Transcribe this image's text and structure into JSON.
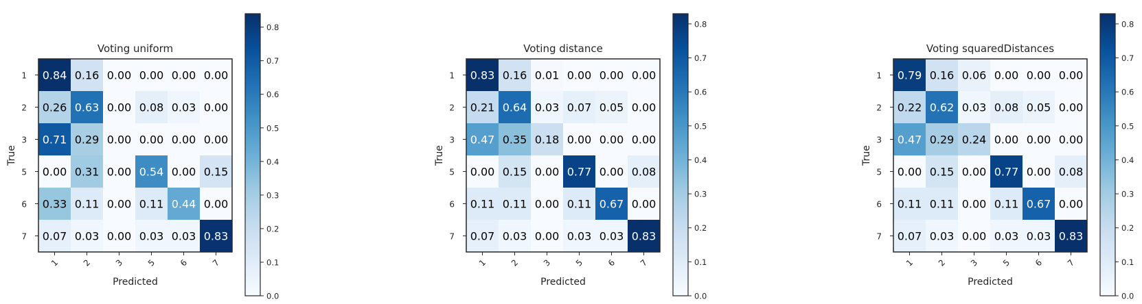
{
  "chart_data": [
    {
      "type": "heatmap",
      "title": "Voting uniform",
      "xlabel": "Predicted",
      "ylabel": "True",
      "x_categories": [
        "1",
        "2",
        "3",
        "5",
        "6",
        "7"
      ],
      "y_categories": [
        "1",
        "2",
        "3",
        "5",
        "6",
        "7"
      ],
      "values": [
        [
          0.84,
          0.16,
          0.0,
          0.0,
          0.0,
          0.0
        ],
        [
          0.26,
          0.63,
          0.0,
          0.08,
          0.03,
          0.0
        ],
        [
          0.71,
          0.29,
          0.0,
          0.0,
          0.0,
          0.0
        ],
        [
          0.0,
          0.31,
          0.0,
          0.54,
          0.0,
          0.15
        ],
        [
          0.33,
          0.11,
          0.0,
          0.11,
          0.44,
          0.0
        ],
        [
          0.07,
          0.03,
          0.0,
          0.03,
          0.03,
          0.83
        ]
      ],
      "value_labels": [
        [
          "0.84",
          "0.16",
          "0.00",
          "0.00",
          "0.00",
          "0.00"
        ],
        [
          "0.26",
          "0.63",
          "0.00",
          "0.08",
          "0.03",
          "0.00"
        ],
        [
          "0.71",
          "0.29",
          "0.00",
          "0.00",
          "0.00",
          "0.00"
        ],
        [
          "0.00",
          "0.31",
          "0.00",
          "0.54",
          "0.00",
          "0.15"
        ],
        [
          "0.33",
          "0.11",
          "0.00",
          "0.11",
          "0.44",
          "0.00"
        ],
        [
          "0.07",
          "0.03",
          "0.00",
          "0.03",
          "0.03",
          "0.83"
        ]
      ],
      "colorbar": {
        "range": [
          0.0,
          0.84
        ],
        "ticks": [
          0.0,
          0.1,
          0.2,
          0.3,
          0.4,
          0.5,
          0.6,
          0.7,
          0.8
        ],
        "tick_labels": [
          "0.0",
          "0.1",
          "0.2",
          "0.3",
          "0.4",
          "0.5",
          "0.6",
          "0.7",
          "0.8"
        ]
      }
    },
    {
      "type": "heatmap",
      "title": "Voting distance",
      "xlabel": "Predicted",
      "ylabel": "True",
      "x_categories": [
        "1",
        "2",
        "3",
        "5",
        "6",
        "7"
      ],
      "y_categories": [
        "1",
        "2",
        "3",
        "5",
        "6",
        "7"
      ],
      "values": [
        [
          0.83,
          0.16,
          0.01,
          0.0,
          0.0,
          0.0
        ],
        [
          0.21,
          0.64,
          0.03,
          0.07,
          0.05,
          0.0
        ],
        [
          0.47,
          0.35,
          0.18,
          0.0,
          0.0,
          0.0
        ],
        [
          0.0,
          0.15,
          0.0,
          0.77,
          0.0,
          0.08
        ],
        [
          0.11,
          0.11,
          0.0,
          0.11,
          0.67,
          0.0
        ],
        [
          0.07,
          0.03,
          0.0,
          0.03,
          0.03,
          0.83
        ]
      ],
      "value_labels": [
        [
          "0.83",
          "0.16",
          "0.01",
          "0.00",
          "0.00",
          "0.00"
        ],
        [
          "0.21",
          "0.64",
          "0.03",
          "0.07",
          "0.05",
          "0.00"
        ],
        [
          "0.47",
          "0.35",
          "0.18",
          "0.00",
          "0.00",
          "0.00"
        ],
        [
          "0.00",
          "0.15",
          "0.00",
          "0.77",
          "0.00",
          "0.08"
        ],
        [
          "0.11",
          "0.11",
          "0.00",
          "0.11",
          "0.67",
          "0.00"
        ],
        [
          "0.07",
          "0.03",
          "0.00",
          "0.03",
          "0.03",
          "0.83"
        ]
      ],
      "colorbar": {
        "range": [
          0.0,
          0.83
        ],
        "ticks": [
          0.0,
          0.1,
          0.2,
          0.3,
          0.4,
          0.5,
          0.6,
          0.7,
          0.8
        ],
        "tick_labels": [
          "0.0",
          "0.1",
          "0.2",
          "0.3",
          "0.4",
          "0.5",
          "0.6",
          "0.7",
          "0.8"
        ]
      }
    },
    {
      "type": "heatmap",
      "title": "Voting squaredDistances",
      "xlabel": "Predicted",
      "ylabel": "True",
      "x_categories": [
        "1",
        "2",
        "3",
        "5",
        "6",
        "7"
      ],
      "y_categories": [
        "1",
        "2",
        "3",
        "5",
        "6",
        "7"
      ],
      "values": [
        [
          0.79,
          0.16,
          0.06,
          0.0,
          0.0,
          0.0
        ],
        [
          0.22,
          0.62,
          0.03,
          0.08,
          0.05,
          0.0
        ],
        [
          0.47,
          0.29,
          0.24,
          0.0,
          0.0,
          0.0
        ],
        [
          0.0,
          0.15,
          0.0,
          0.77,
          0.0,
          0.08
        ],
        [
          0.11,
          0.11,
          0.0,
          0.11,
          0.67,
          0.0
        ],
        [
          0.07,
          0.03,
          0.0,
          0.03,
          0.03,
          0.83
        ]
      ],
      "value_labels": [
        [
          "0.79",
          "0.16",
          "0.06",
          "0.00",
          "0.00",
          "0.00"
        ],
        [
          "0.22",
          "0.62",
          "0.03",
          "0.08",
          "0.05",
          "0.00"
        ],
        [
          "0.47",
          "0.29",
          "0.24",
          "0.00",
          "0.00",
          "0.00"
        ],
        [
          "0.00",
          "0.15",
          "0.00",
          "0.77",
          "0.00",
          "0.08"
        ],
        [
          "0.11",
          "0.11",
          "0.00",
          "0.11",
          "0.67",
          "0.00"
        ],
        [
          "0.07",
          "0.03",
          "0.00",
          "0.03",
          "0.03",
          "0.83"
        ]
      ],
      "colorbar": {
        "range": [
          0.0,
          0.83
        ],
        "ticks": [
          0.0,
          0.1,
          0.2,
          0.3,
          0.4,
          0.5,
          0.6,
          0.7,
          0.8
        ],
        "tick_labels": [
          "0.0",
          "0.1",
          "0.2",
          "0.3",
          "0.4",
          "0.5",
          "0.6",
          "0.7",
          "0.8"
        ]
      }
    }
  ],
  "colors": {
    "colormap": "Blues",
    "cmap_low": "#f7fbff",
    "cmap_high": "#08306b",
    "text_dark": "#000000",
    "text_light": "#ffffff",
    "frame": "#262626"
  }
}
